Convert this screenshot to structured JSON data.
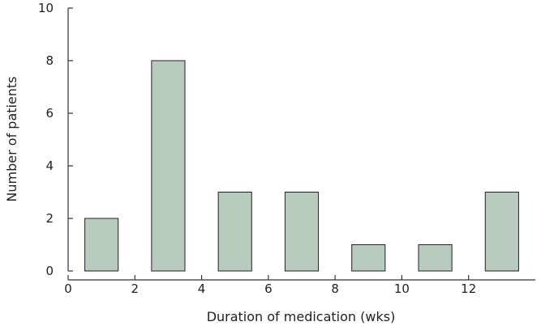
{
  "chart_data": {
    "type": "bar",
    "title": "",
    "xlabel": "Duration of medication (wks)",
    "ylabel": "Number of patients",
    "xlim": [
      0,
      14
    ],
    "ylim": [
      0,
      10
    ],
    "x_ticks": [
      0,
      2,
      4,
      6,
      8,
      10,
      12
    ],
    "y_ticks": [
      0,
      2,
      4,
      6,
      8,
      10
    ],
    "bars": [
      {
        "x_start": 0.5,
        "x_end": 1.5,
        "value": 2
      },
      {
        "x_start": 2.5,
        "x_end": 3.5,
        "value": 8
      },
      {
        "x_start": 4.5,
        "x_end": 5.5,
        "value": 3
      },
      {
        "x_start": 6.5,
        "x_end": 7.5,
        "value": 3
      },
      {
        "x_start": 8.5,
        "x_end": 9.5,
        "value": 1
      },
      {
        "x_start": 10.5,
        "x_end": 11.5,
        "value": 1
      },
      {
        "x_start": 12.5,
        "x_end": 13.5,
        "value": 3
      }
    ],
    "grid": false,
    "legend": "none",
    "bar_color": "#b8cbbf"
  }
}
